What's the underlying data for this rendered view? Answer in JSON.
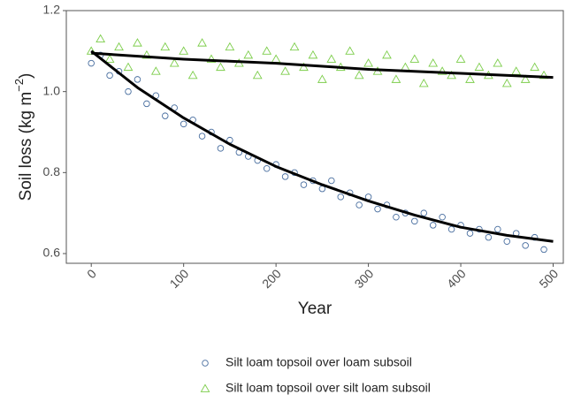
{
  "chart_data": {
    "type": "scatter",
    "x_label": "Year",
    "y_label": {
      "text": "Soil loss (kg m",
      "superscript": "−2",
      "suffix": ")"
    },
    "xlim": [
      -27,
      511
    ],
    "ylim": [
      0.576,
      1.2
    ],
    "xticks": [
      0,
      100,
      200,
      300,
      400,
      500
    ],
    "yticks": [
      {
        "value": 0.6,
        "label": "0.6"
      },
      {
        "value": 0.8,
        "label": "0.8"
      },
      {
        "value": 1.0,
        "label": "1.0"
      },
      {
        "value": 1.2,
        "label": "1.2"
      }
    ],
    "grid": false,
    "legend": "bottom",
    "series": [
      {
        "name": "Silt loam topsoil over loam subsoil",
        "color": "#4a6fa0",
        "marker": "circle",
        "x": [
          0,
          10,
          20,
          30,
          40,
          50,
          60,
          70,
          80,
          90,
          100,
          110,
          120,
          130,
          140,
          150,
          160,
          170,
          180,
          190,
          200,
          210,
          220,
          230,
          240,
          250,
          260,
          270,
          280,
          290,
          300,
          310,
          320,
          330,
          340,
          350,
          360,
          370,
          380,
          390,
          400,
          410,
          420,
          430,
          440,
          450,
          460,
          470,
          480,
          490
        ],
        "values": [
          1.07,
          1.09,
          1.04,
          1.05,
          1.0,
          1.03,
          0.97,
          0.99,
          0.94,
          0.96,
          0.92,
          0.93,
          0.89,
          0.9,
          0.86,
          0.88,
          0.85,
          0.84,
          0.83,
          0.81,
          0.82,
          0.79,
          0.8,
          0.77,
          0.78,
          0.76,
          0.78,
          0.74,
          0.75,
          0.72,
          0.74,
          0.71,
          0.72,
          0.69,
          0.7,
          0.68,
          0.7,
          0.67,
          0.69,
          0.66,
          0.67,
          0.65,
          0.66,
          0.64,
          0.66,
          0.63,
          0.65,
          0.62,
          0.64,
          0.61
        ],
        "fit": {
          "color": "#000000",
          "x": [
            0,
            50,
            100,
            150,
            200,
            250,
            300,
            350,
            400,
            450,
            500
          ],
          "values": [
            1.1,
            1.01,
            0.935,
            0.87,
            0.815,
            0.77,
            0.73,
            0.695,
            0.665,
            0.645,
            0.63
          ]
        }
      },
      {
        "name": "Silt loam topsoil over silt loam subsoil",
        "color": "#7ccd4a",
        "marker": "triangle",
        "x": [
          0,
          10,
          20,
          30,
          40,
          50,
          60,
          70,
          80,
          90,
          100,
          110,
          120,
          130,
          140,
          150,
          160,
          170,
          180,
          190,
          200,
          210,
          220,
          230,
          240,
          250,
          260,
          270,
          280,
          290,
          300,
          310,
          320,
          330,
          340,
          350,
          360,
          370,
          380,
          390,
          400,
          410,
          420,
          430,
          440,
          450,
          460,
          470,
          480,
          490
        ],
        "values": [
          1.1,
          1.13,
          1.08,
          1.11,
          1.06,
          1.12,
          1.09,
          1.05,
          1.11,
          1.07,
          1.1,
          1.04,
          1.12,
          1.08,
          1.06,
          1.11,
          1.07,
          1.09,
          1.04,
          1.1,
          1.08,
          1.05,
          1.11,
          1.06,
          1.09,
          1.03,
          1.08,
          1.06,
          1.1,
          1.04,
          1.07,
          1.05,
          1.09,
          1.03,
          1.06,
          1.08,
          1.02,
          1.07,
          1.05,
          1.04,
          1.08,
          1.03,
          1.06,
          1.04,
          1.07,
          1.02,
          1.05,
          1.03,
          1.06,
          1.04
        ],
        "fit": {
          "color": "#000000",
          "x": [
            0,
            100,
            200,
            300,
            400,
            500
          ],
          "values": [
            1.095,
            1.08,
            1.07,
            1.055,
            1.045,
            1.035
          ]
        }
      }
    ]
  }
}
